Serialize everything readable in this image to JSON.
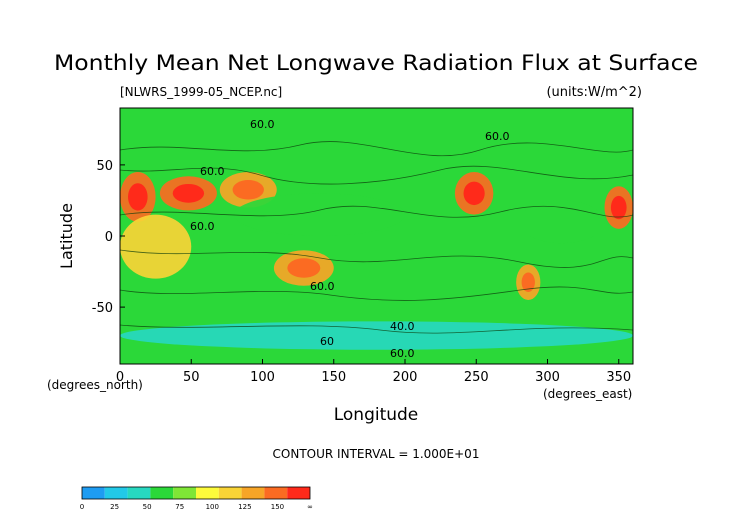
{
  "title": "Monthly Mean Net Longwave Radiation Flux at Surface",
  "filename": "[NLWRS_1999-05_NCEP.nc]",
  "units": "(units:W/m^2)",
  "contour_interval_text": "CONTOUR INTERVAL = 1.000E+01",
  "colors": {
    "ocean_green": "#2bd839",
    "cyan": "#27d8c0",
    "yellow": "#fdfb3b",
    "orange": "#f7a527",
    "red": "#ff2a1a"
  },
  "chart_data": {
    "type": "heatmap",
    "title": "Monthly Mean Net Longwave Radiation Flux at Surface",
    "xlabel": "Longitude",
    "ylabel": "Latitude",
    "x_unit_label": "(degrees_east)",
    "y_unit_label": "(degrees_north)",
    "xlim": [
      0,
      360
    ],
    "ylim": [
      -90,
      90
    ],
    "x_ticks": [
      0,
      50,
      100,
      150,
      200,
      250,
      300,
      350
    ],
    "y_ticks": [
      50,
      0,
      -50
    ],
    "contour_labels": [
      "60.0",
      "60.0",
      "60.0",
      "60.0",
      "60.0",
      "40.0",
      "60",
      "60.0"
    ],
    "colorbar": {
      "levels": [
        "0",
        "25",
        "50",
        "75",
        "100",
        "125",
        "150",
        "∞"
      ],
      "colors": [
        "#1e9cf2",
        "#22c9e8",
        "#27d8c0",
        "#2bd839",
        "#7fe636",
        "#fdfb3b",
        "#f9d436",
        "#f7a527",
        "#fb6b22",
        "#ff2a1a"
      ]
    },
    "regions": [
      {
        "lon": [
          0,
          25
        ],
        "lat": [
          10,
          45
        ],
        "value": 150
      },
      {
        "lon": [
          28,
          68
        ],
        "lat": [
          18,
          42
        ],
        "value": 150
      },
      {
        "lon": [
          70,
          110
        ],
        "lat": [
          20,
          45
        ],
        "value": 120
      },
      {
        "lon": [
          235,
          262
        ],
        "lat": [
          15,
          45
        ],
        "value": 140
      },
      {
        "lon": [
          340,
          360
        ],
        "lat": [
          5,
          35
        ],
        "value": 150
      },
      {
        "lon": [
          108,
          150
        ],
        "lat": [
          -35,
          -10
        ],
        "value": 125
      },
      {
        "lon": [
          278,
          295
        ],
        "lat": [
          -45,
          -20
        ],
        "value": 125
      },
      {
        "lon": [
          0,
          50
        ],
        "lat": [
          -30,
          15
        ],
        "value": 110
      },
      {
        "lon": [
          80,
          200
        ],
        "lat": [
          0,
          30
        ],
        "value": 60
      },
      {
        "lon": [
          280,
          340
        ],
        "lat": [
          -5,
          25
        ],
        "value": 55
      },
      {
        "lon": [
          0,
          360
        ],
        "lat": [
          -80,
          -60
        ],
        "value": 40
      }
    ]
  }
}
